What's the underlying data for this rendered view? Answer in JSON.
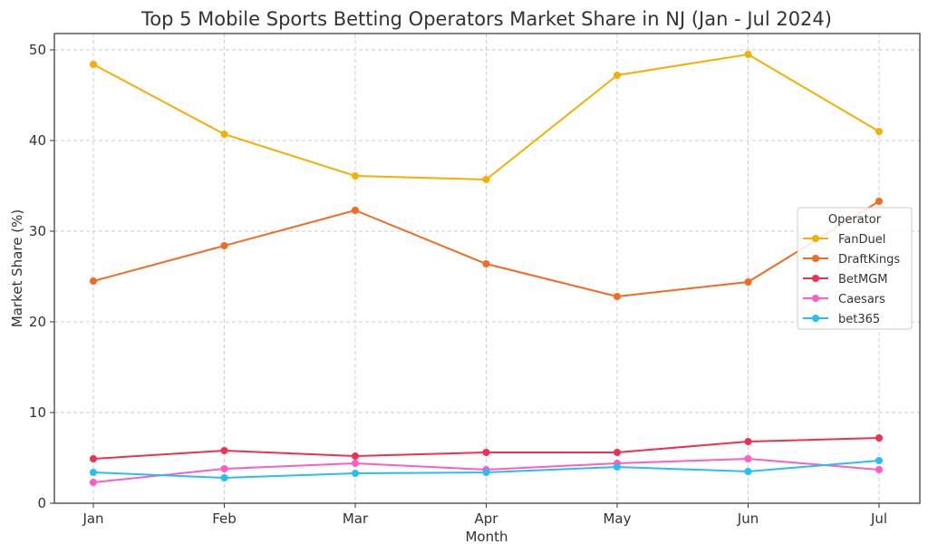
{
  "chart_data": {
    "type": "line",
    "title": "Top 5 Mobile Sports Betting Operators Market Share in NJ (Jan - Jul 2024)",
    "xlabel": "Month",
    "ylabel": "Market Share (%)",
    "categories": [
      "Jan",
      "Feb",
      "Mar",
      "Apr",
      "May",
      "Jun",
      "Jul"
    ],
    "ylim": [
      0,
      51.8
    ],
    "yticks": [
      0,
      10,
      20,
      30,
      40,
      50
    ],
    "grid": true,
    "legend": {
      "title": "Operator",
      "placement": "right"
    },
    "series": [
      {
        "name": "FanDuel",
        "color": "#F5AF00",
        "values": [
          48.4,
          40.7,
          36.1,
          35.7,
          47.2,
          49.5,
          41.0
        ]
      },
      {
        "name": "DraftKings",
        "color": "#F26B21",
        "values": [
          24.5,
          28.4,
          32.3,
          26.4,
          22.8,
          24.4,
          33.3
        ]
      },
      {
        "name": "BetMGM",
        "color": "#EE3152",
        "values": [
          4.9,
          5.8,
          5.2,
          5.6,
          5.6,
          6.8,
          7.2
        ]
      },
      {
        "name": "Caesars",
        "color": "#FF5CC6",
        "values": [
          2.3,
          3.8,
          4.4,
          3.7,
          4.4,
          4.9,
          3.7
        ]
      },
      {
        "name": "bet365",
        "color": "#28BDF5",
        "values": [
          3.4,
          2.8,
          3.3,
          3.4,
          4.0,
          3.5,
          4.7
        ]
      }
    ]
  }
}
